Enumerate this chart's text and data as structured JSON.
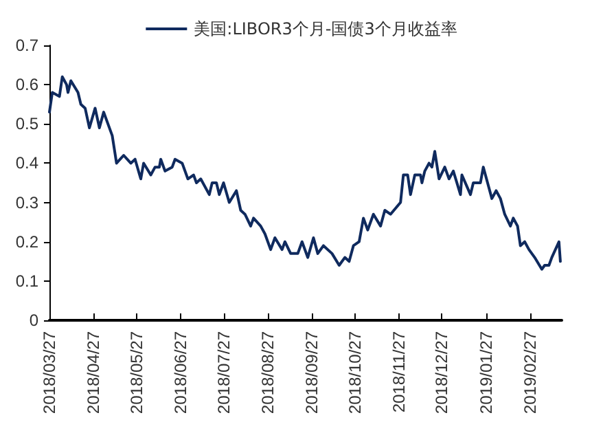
{
  "chart_data": {
    "type": "line",
    "x": [
      "2018-03-27",
      "2018-03-29",
      "2018-04-03",
      "2018-04-05",
      "2018-04-08",
      "2018-04-09",
      "2018-04-11",
      "2018-04-16",
      "2018-04-18",
      "2018-04-21",
      "2018-04-24",
      "2018-04-28",
      "2018-05-01",
      "2018-05-04",
      "2018-05-05",
      "2018-05-10",
      "2018-05-13",
      "2018-05-18",
      "2018-05-23",
      "2018-05-26",
      "2018-05-30",
      "2018-06-01",
      "2018-06-06",
      "2018-06-09",
      "2018-06-12",
      "2018-06-13",
      "2018-06-16",
      "2018-06-21",
      "2018-06-23",
      "2018-06-28",
      "2018-07-02",
      "2018-07-06",
      "2018-07-08",
      "2018-07-11",
      "2018-07-17",
      "2018-07-19",
      "2018-07-22",
      "2018-07-24",
      "2018-07-27",
      "2018-07-31",
      "2018-08-05",
      "2018-08-08",
      "2018-08-11",
      "2018-08-15",
      "2018-08-17",
      "2018-08-22",
      "2018-08-25",
      "2018-08-29",
      "2018-09-01",
      "2018-09-06",
      "2018-09-08",
      "2018-09-12",
      "2018-09-17",
      "2018-09-20",
      "2018-09-24",
      "2018-09-28",
      "2018-10-01",
      "2018-10-05",
      "2018-10-11",
      "2018-10-16",
      "2018-10-20",
      "2018-10-23",
      "2018-10-26",
      "2018-10-30",
      "2018-11-02",
      "2018-11-05",
      "2018-11-09",
      "2018-11-14",
      "2018-11-17",
      "2018-11-21",
      "2018-11-28",
      "2018-11-30",
      "2018-12-03",
      "2018-12-05",
      "2018-12-08",
      "2018-12-12",
      "2018-12-13",
      "2018-12-15",
      "2018-12-18",
      "2018-12-20",
      "2018-12-22",
      "2018-12-25",
      "2018-12-29",
      "2019-01-01",
      "2019-01-04",
      "2019-01-09",
      "2019-01-10",
      "2019-01-16",
      "2019-01-18",
      "2019-01-23",
      "2019-01-25",
      "2019-01-28",
      "2019-01-31",
      "2019-02-03",
      "2019-02-06",
      "2019-02-09",
      "2019-02-13",
      "2019-02-15",
      "2019-02-18",
      "2019-02-20",
      "2019-02-23",
      "2019-02-26",
      "2019-03-02",
      "2019-03-07",
      "2019-03-09",
      "2019-03-12",
      "2019-03-14",
      "2019-03-19",
      "2019-03-20"
    ],
    "series": [
      {
        "name": "美国:LIBOR3个月-国债3个月收益率",
        "color": "#0f2a5e",
        "values": [
          0.53,
          0.58,
          0.57,
          0.62,
          0.6,
          0.58,
          0.61,
          0.58,
          0.55,
          0.54,
          0.49,
          0.54,
          0.49,
          0.53,
          0.52,
          0.47,
          0.4,
          0.42,
          0.4,
          0.41,
          0.36,
          0.4,
          0.37,
          0.39,
          0.39,
          0.41,
          0.38,
          0.39,
          0.41,
          0.4,
          0.36,
          0.37,
          0.35,
          0.36,
          0.32,
          0.35,
          0.35,
          0.32,
          0.35,
          0.3,
          0.33,
          0.28,
          0.27,
          0.24,
          0.26,
          0.24,
          0.22,
          0.18,
          0.21,
          0.18,
          0.2,
          0.17,
          0.17,
          0.2,
          0.16,
          0.21,
          0.17,
          0.19,
          0.17,
          0.14,
          0.16,
          0.15,
          0.19,
          0.2,
          0.26,
          0.23,
          0.27,
          0.24,
          0.28,
          0.27,
          0.3,
          0.37,
          0.37,
          0.32,
          0.37,
          0.37,
          0.35,
          0.38,
          0.4,
          0.39,
          0.43,
          0.36,
          0.39,
          0.36,
          0.38,
          0.32,
          0.37,
          0.32,
          0.35,
          0.35,
          0.39,
          0.35,
          0.31,
          0.33,
          0.31,
          0.27,
          0.24,
          0.26,
          0.24,
          0.19,
          0.2,
          0.18,
          0.16,
          0.13,
          0.14,
          0.14,
          0.16,
          0.2,
          0.15
        ]
      }
    ],
    "xlim": [
      "2018-03-27",
      "2019-03-21"
    ],
    "xticks": [
      {
        "value": "2018-03-27",
        "label": "2018/03/27"
      },
      {
        "value": "2018-04-27",
        "label": "2018/04/27"
      },
      {
        "value": "2018-05-27",
        "label": "2018/05/27"
      },
      {
        "value": "2018-06-27",
        "label": "2018/06/27"
      },
      {
        "value": "2018-07-27",
        "label": "2018/07/27"
      },
      {
        "value": "2018-08-27",
        "label": "2018/08/27"
      },
      {
        "value": "2018-09-27",
        "label": "2018/09/27"
      },
      {
        "value": "2018-10-27",
        "label": "2018/10/27"
      },
      {
        "value": "2018-11-27",
        "label": "2018/11/27"
      },
      {
        "value": "2018-12-27",
        "label": "2018/12/27"
      },
      {
        "value": "2019-01-27",
        "label": "2019/01/27"
      },
      {
        "value": "2019-02-27",
        "label": "2019/02/27"
      }
    ],
    "ylim": [
      0,
      0.7
    ],
    "yticks": [
      0,
      0.1,
      0.2,
      0.3,
      0.4,
      0.5,
      0.6,
      0.7
    ],
    "legend": "top",
    "grid": false,
    "marker": "none",
    "line_style": "solid"
  }
}
